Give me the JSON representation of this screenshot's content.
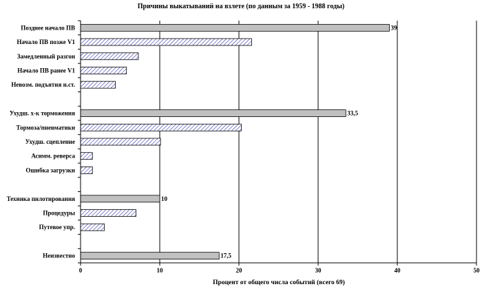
{
  "chart_data": {
    "type": "bar",
    "orientation": "horizontal",
    "title": "Причины выкатываний на взлете (по данным за 1959 - 1988 годы)",
    "xlabel": "Процент от общего числа событий (всего 69)",
    "ylabel": "",
    "xlim": [
      0,
      50
    ],
    "xticks": [
      "0",
      "10",
      "20",
      "30",
      "40",
      "50"
    ],
    "grid": "vertical",
    "legend": "none",
    "colors": {
      "solid": "#c0c0c0",
      "hatch": "#3333aa",
      "axis": "#000000"
    },
    "bars": [
      {
        "category": "Позднее начало ПВ",
        "value": 39,
        "label": "39",
        "style": "solid"
      },
      {
        "category": "Начало ПВ позже V1",
        "value": 21.6,
        "label": "",
        "style": "hatched"
      },
      {
        "category": "Замедленный разгон",
        "value": 7.3,
        "label": "",
        "style": "hatched"
      },
      {
        "category": "Начало ПВ ранее V1",
        "value": 5.8,
        "label": "",
        "style": "hatched"
      },
      {
        "category": "Невозм. подъятия н.ст.",
        "value": 4.4,
        "label": "",
        "style": "hatched"
      },
      {
        "category": "",
        "value": null,
        "label": "",
        "style": "gap"
      },
      {
        "category": "Ухудш. х-к торможения",
        "value": 33.5,
        "label": "33,5",
        "style": "solid"
      },
      {
        "category": "Тормоза/пневматики",
        "value": 20.3,
        "label": "",
        "style": "hatched"
      },
      {
        "category": "Ухудш. сцепление",
        "value": 10.1,
        "label": "",
        "style": "hatched"
      },
      {
        "category": "Асимм. реверса",
        "value": 1.5,
        "label": "",
        "style": "hatched"
      },
      {
        "category": "Ошибка загрузки",
        "value": 1.5,
        "label": "",
        "style": "hatched"
      },
      {
        "category": "",
        "value": null,
        "label": "",
        "style": "gap"
      },
      {
        "category": "Техника пилотирования",
        "value": 10,
        "label": "10",
        "style": "solid"
      },
      {
        "category": "Процедуры",
        "value": 7,
        "label": "",
        "style": "hatched"
      },
      {
        "category": "Путевое упр.",
        "value": 3,
        "label": "",
        "style": "hatched"
      },
      {
        "category": "",
        "value": null,
        "label": "",
        "style": "gap"
      },
      {
        "category": "Неизвестно",
        "value": 17.5,
        "label": "17,5",
        "style": "solid"
      }
    ]
  }
}
